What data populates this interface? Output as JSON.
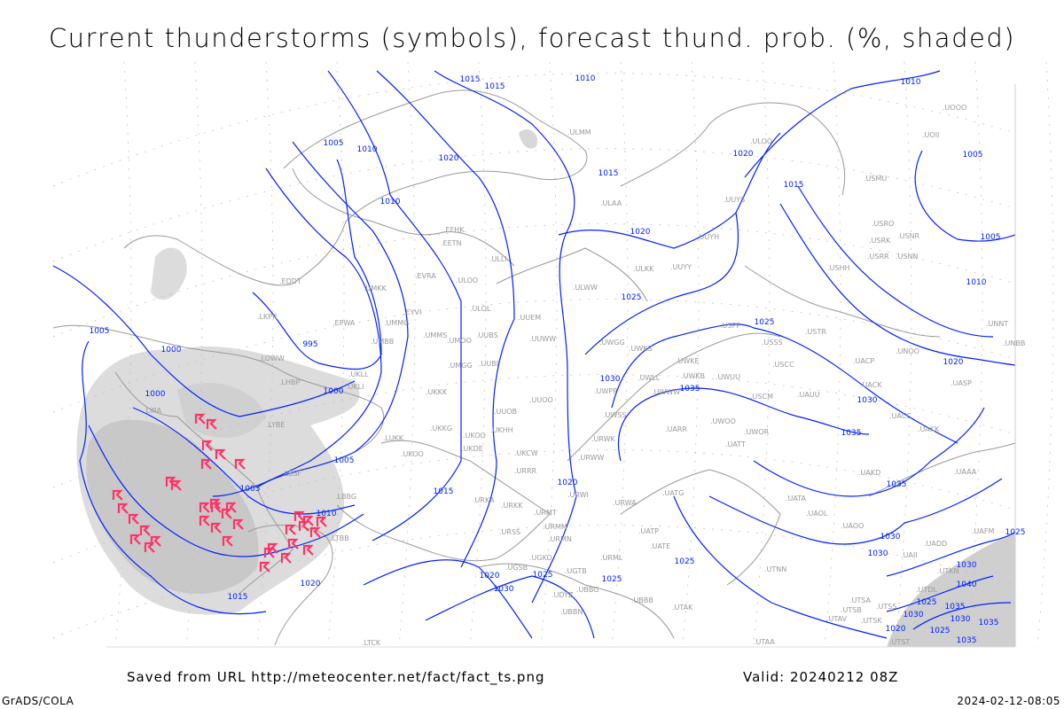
{
  "title": "Current thunderstorms (symbols), forecast thund. prob. (%, shaded)",
  "footer": {
    "source": "Saved from URL http://meteocenter.net/fact/fact_ts.png",
    "valid": "Valid: 20240212 08Z",
    "software": "GrADS/COLA",
    "generated": "2024-02-12-08:05"
  },
  "colors": {
    "isobar": "#0022ff",
    "coastline": "#999999",
    "storm_symbol": "#ff3366",
    "probability_shading": "#d0d0d0"
  },
  "legend_symbols": {
    "thunderstorm": "thunderstorm-symbol"
  },
  "stations": [
    "EDDT",
    "LKPR",
    "EPWA",
    "LOWW",
    "LHBP",
    "UKLL",
    "UKLI",
    "LIRA",
    "LYBE",
    "LBSF",
    "LBBG",
    "LTBB",
    "UMKK",
    "EYVI",
    "UMMG",
    "UMBB",
    "EVRA",
    "EFHK",
    "EETN",
    "ULLI",
    "ULOO",
    "ULOL",
    "UUEM",
    "UMMS",
    "UMOO",
    "UUBS",
    "UUWW",
    "UMGG",
    "UUBP",
    "UKKK",
    "UUOO",
    "UUOB",
    "UKKG",
    "UKHH",
    "UKOO",
    "UKDE",
    "LUKK",
    "UKOO",
    "UKCW",
    "URRR",
    "URKA",
    "URKK",
    "URMT",
    "URWI",
    "URSS",
    "URMM",
    "URMN",
    "UGKO",
    "UGSB",
    "UGTB",
    "UBBG",
    "UDYZ",
    "UBBN",
    "URML",
    "LTCK",
    "UBBB",
    "UATG",
    "URWA",
    "UATP",
    "UATE",
    "UTAK",
    "UTAA",
    "UTNN",
    "ULMM",
    "ULAA",
    "UUYS",
    "UUYH",
    "ULKK",
    "UUYY",
    "ULWW",
    "UWGG",
    "UWKS",
    "UWKE",
    "UWLL",
    "UWKB",
    "UWUU",
    "UWPP",
    "UWWW",
    "UWSS",
    "URWK",
    "URWW",
    "UARR",
    "UWOO",
    "UWOR",
    "UATT",
    "USCM",
    "UAUU",
    "USSS",
    "USCC",
    "USTR",
    "USPP",
    "UACK",
    "UACP",
    "UNOO",
    "UASP",
    "UACC",
    "UAKK",
    "UAKD",
    "UAAA",
    "UATA",
    "UAOL",
    "UAOO",
    "UADD",
    "UAFM",
    "UAII",
    "UTKN",
    "UTDL",
    "UTSA",
    "UTSS",
    "UTSB",
    "UTAV",
    "UTSK",
    "UTST",
    "ULOO",
    "USMU",
    "UOOO",
    "UOII",
    "USRO",
    "USRK",
    "USNR",
    "USRR",
    "USNN",
    "USHH",
    "UNNT",
    "UNBB"
  ],
  "isobar_labels": [
    "1015",
    "1015",
    "1010",
    "1005",
    "1010",
    "1020",
    "1015",
    "1020",
    "1015",
    "1010",
    "1020",
    "1025",
    "1005",
    "1010",
    "1005",
    "1000",
    "995",
    "1000",
    "1000",
    "1005",
    "1010",
    "1005",
    "1015",
    "1020",
    "1020",
    "1025",
    "1030",
    "1035",
    "1025",
    "1030",
    "1030",
    "1035",
    "1035",
    "1030",
    "1025",
    "1020",
    "1025",
    "1020",
    "1030",
    "1025",
    "1030",
    "1035",
    "1040",
    "1030",
    "1035",
    "1025",
    "1030",
    "1025",
    "1035",
    "1020",
    "1010",
    "1005",
    "1015"
  ]
}
